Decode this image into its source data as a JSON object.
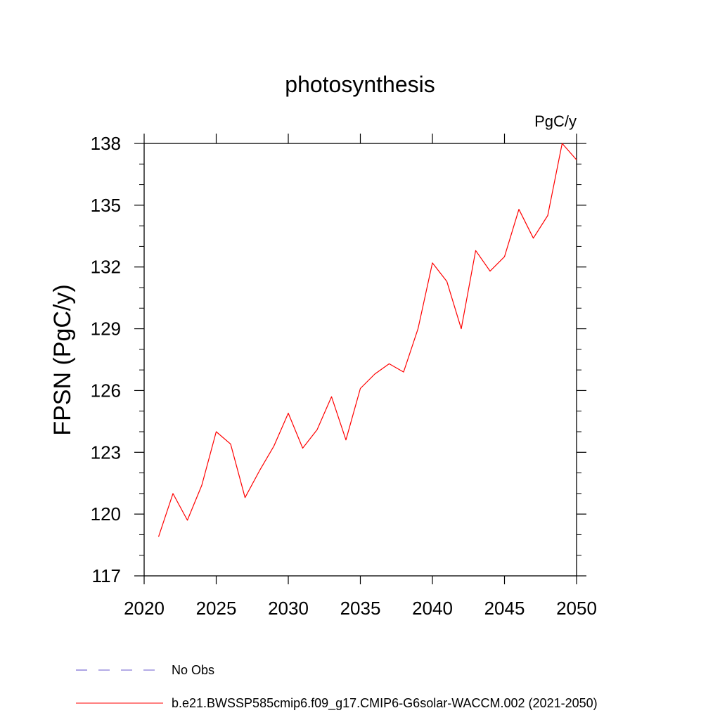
{
  "chart_data": {
    "type": "line",
    "title": "photosynthesis",
    "units": "PgC/y",
    "xlabel": "",
    "ylabel": "FPSN  (PgC/y)",
    "xlim": [
      2020,
      2050
    ],
    "ylim": [
      117,
      138
    ],
    "xticks": [
      2020,
      2025,
      2030,
      2035,
      2040,
      2045,
      2050
    ],
    "yticks": [
      117,
      120,
      123,
      126,
      129,
      132,
      135,
      138
    ],
    "grid": false,
    "legend_position": "bottom",
    "legend": [
      {
        "name": "No Obs",
        "color": "#6a5acd",
        "style": "dashed"
      },
      {
        "name": "b.e21.BWSSP585cmip6.f09_g17.CMIP6-G6solar-WACCM.002 (2021-2050)",
        "color": "#ff0000",
        "style": "solid"
      }
    ],
    "series": [
      {
        "name": "b.e21.BWSSP585cmip6.f09_g17.CMIP6-G6solar-WACCM.002 (2021-2050)",
        "color": "#ff0000",
        "x": [
          2021,
          2022,
          2023,
          2024,
          2025,
          2026,
          2027,
          2028,
          2029,
          2030,
          2031,
          2032,
          2033,
          2034,
          2035,
          2036,
          2037,
          2038,
          2039,
          2040,
          2041,
          2042,
          2043,
          2044,
          2045,
          2046,
          2047,
          2048,
          2049,
          2050
        ],
        "y": [
          118.9,
          121.0,
          119.7,
          121.4,
          124.0,
          123.4,
          120.8,
          122.1,
          123.3,
          124.9,
          123.2,
          124.1,
          125.7,
          123.6,
          126.1,
          126.8,
          127.3,
          126.9,
          129.0,
          132.2,
          131.3,
          129.0,
          132.8,
          131.8,
          132.5,
          134.8,
          133.4,
          134.5,
          138.0,
          137.2
        ]
      }
    ]
  }
}
